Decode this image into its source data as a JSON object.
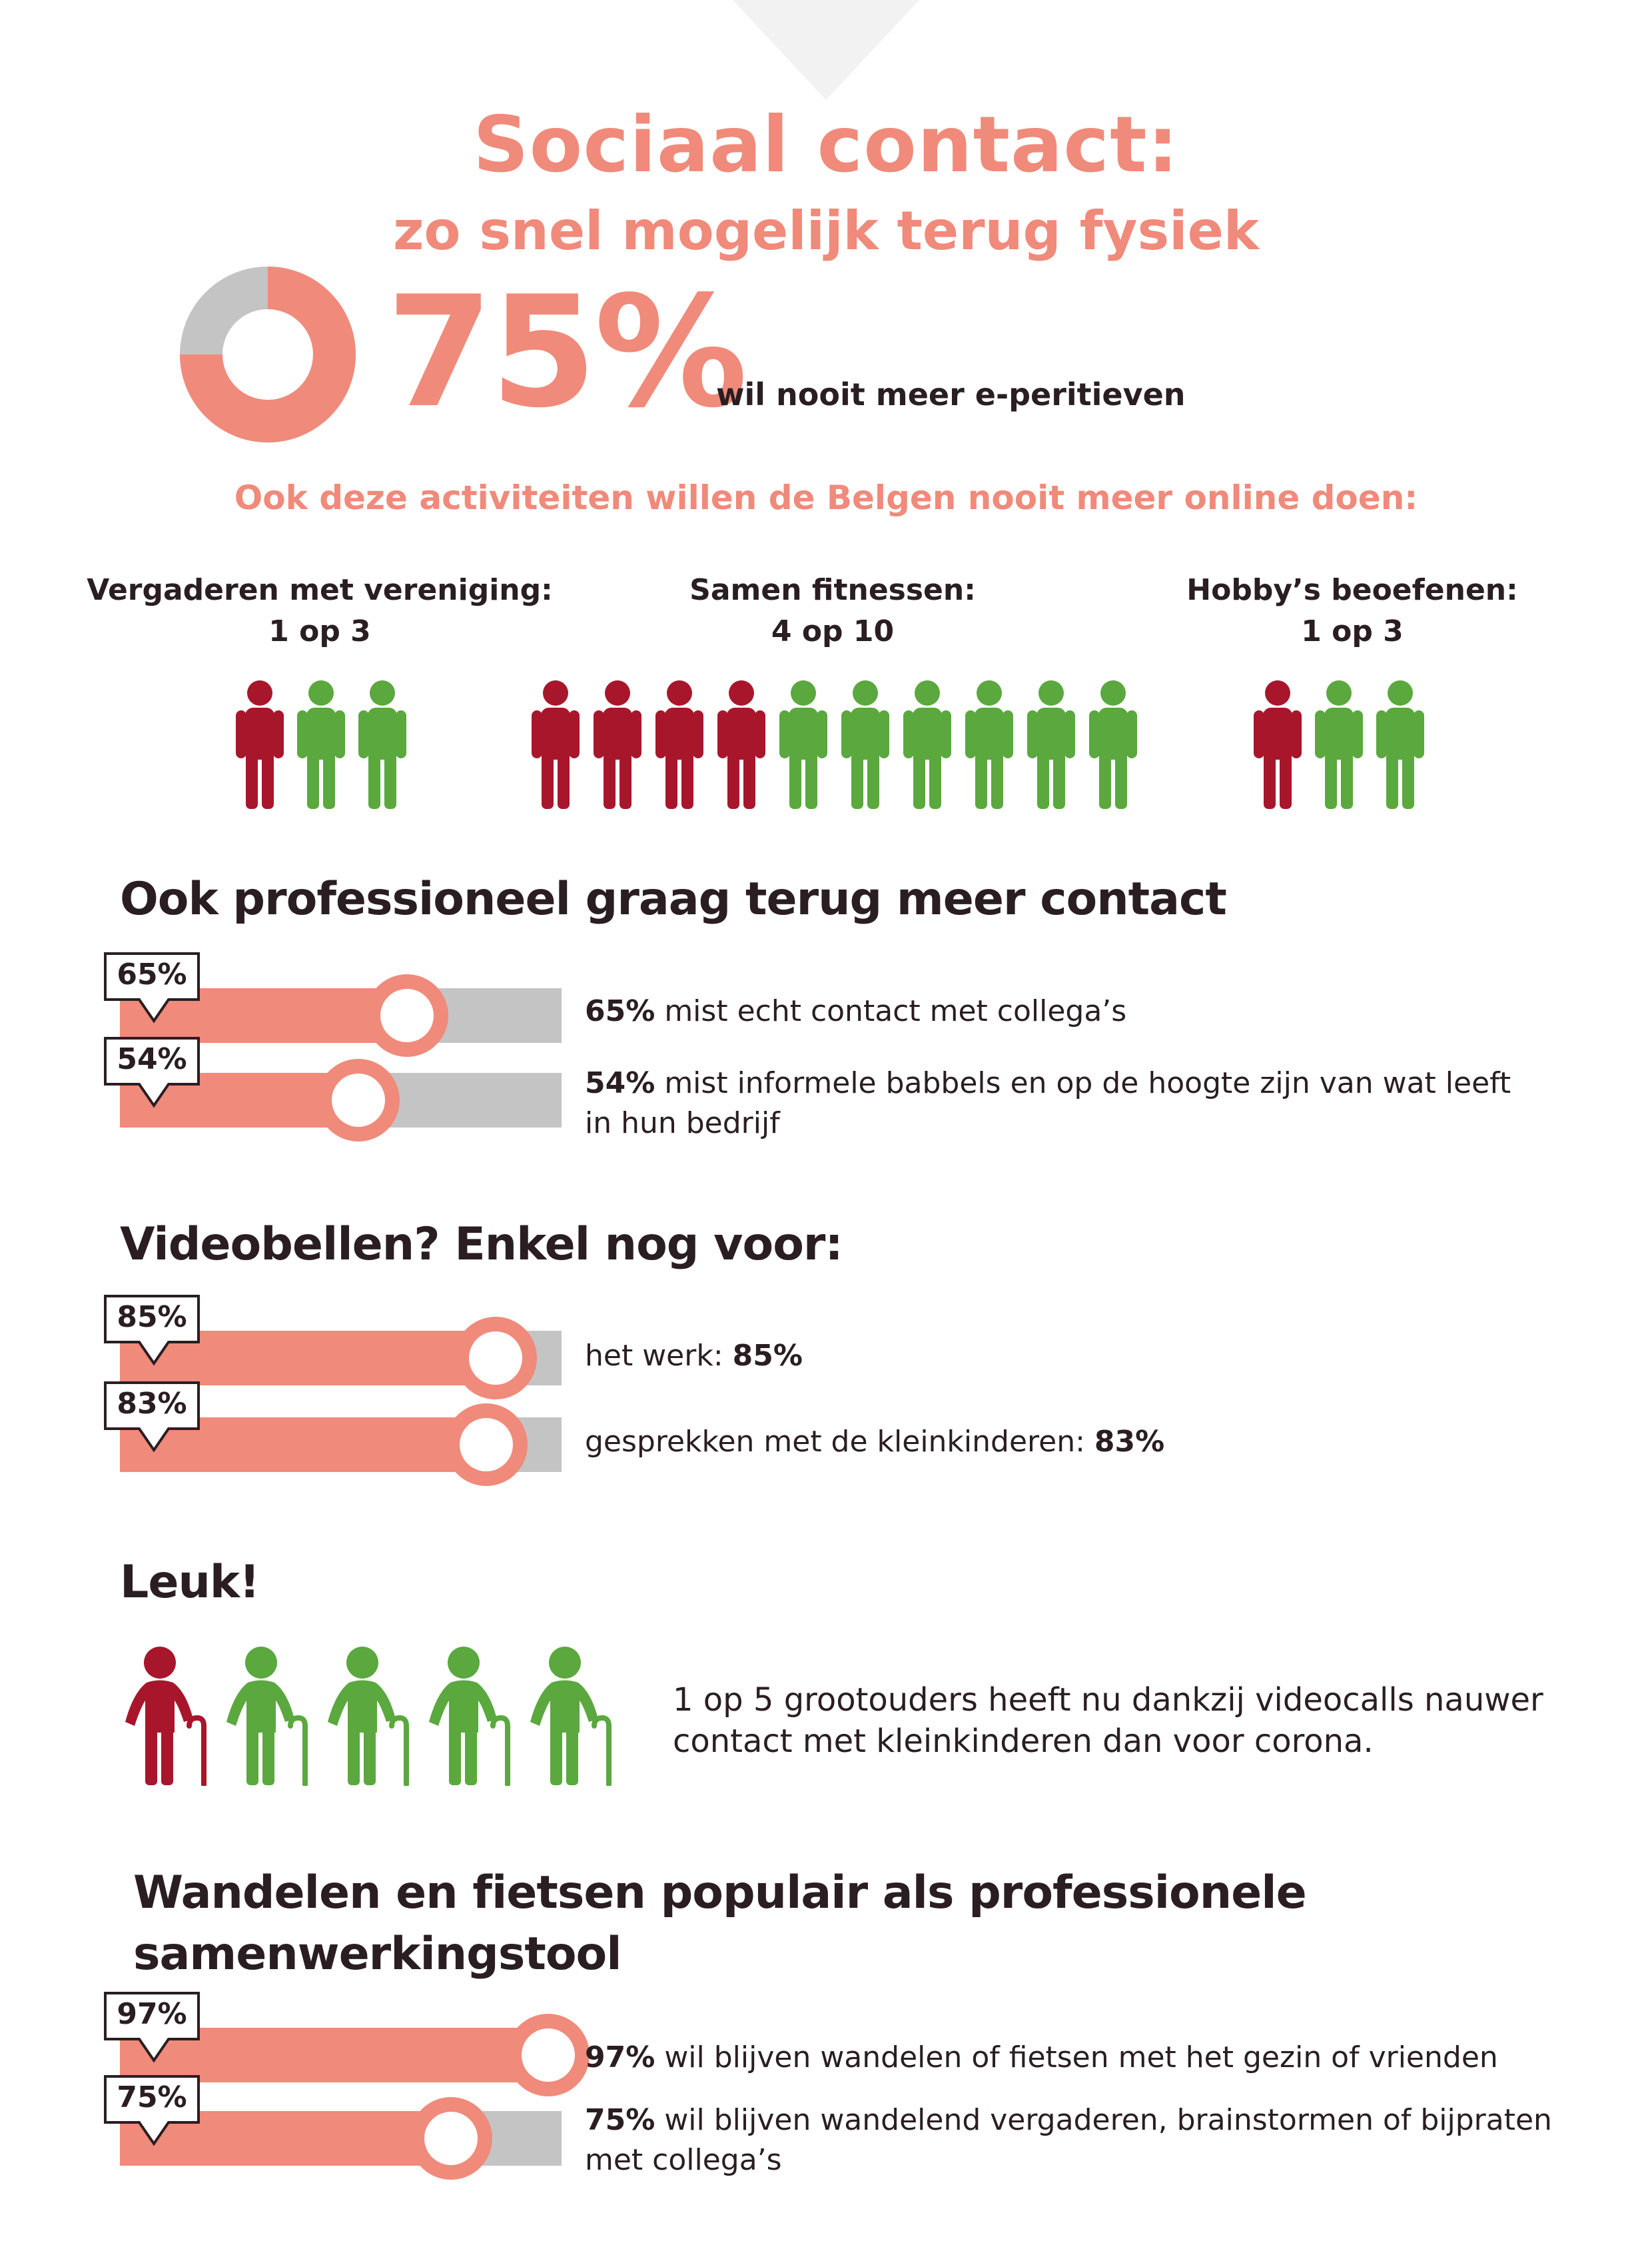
{
  "header": {
    "title": "Sociaal contact:",
    "subtitle": "zo snel mogelijk terug fysiek"
  },
  "headline_stat": {
    "value": "75%",
    "percent": 75,
    "caption": "wil nooit meer e-peritieven"
  },
  "activities": {
    "title": "Ook deze activiteiten willen de Belgen nooit meer online doen:",
    "groups": [
      {
        "name": "Vergaderen met vereniging:",
        "ratio": "1 op 3",
        "highlighted": 1,
        "total": 3
      },
      {
        "name": "Samen fitnessen:",
        "ratio": "4 op 10",
        "highlighted": 4,
        "total": 10
      },
      {
        "name": "Hobby’s beoefenen:",
        "ratio": "1 op 3",
        "highlighted": 1,
        "total": 3
      }
    ]
  },
  "sections": {
    "professional": {
      "title": "Ook professioneel graag terug meer contact",
      "bars": [
        {
          "label": "65%",
          "value": 65,
          "bold": "65%",
          "text": " mist echt contact met collega’s",
          "text2": ""
        },
        {
          "label": "54%",
          "value": 54,
          "bold": "54%",
          "text": " mist informele babbels en op de hoogte zijn van wat leeft",
          "text2": "in hun bedrijf"
        }
      ]
    },
    "video": {
      "title": "Videobellen? Enkel nog voor:",
      "bars": [
        {
          "label": "85%",
          "value": 85,
          "text": "het werk: ",
          "bold": "85%"
        },
        {
          "label": "83%",
          "value": 83,
          "text": "gesprekken met de kleinkinderen: ",
          "bold": "83%"
        }
      ]
    },
    "leuk": {
      "title": "Leuk!",
      "highlighted": 1,
      "total": 5,
      "text_line1": "1 op 5 grootouders heeft nu dankzij videocalls nauwer",
      "text_line2": "contact met kleinkinderen dan voor corona."
    },
    "walking": {
      "title_line1": "Wandelen en fietsen populair als professionele",
      "title_line2": "samenwerkingstool",
      "bars": [
        {
          "label": "97%",
          "value": 97,
          "bold": "97%",
          "text": " wil blijven wandelen of fietsen met het gezin of vrienden",
          "text2": ""
        },
        {
          "label": "75%",
          "value": 75,
          "bold": "75%",
          "text": " wil blijven wandelend vergaderen, brainstormen of bijpraten",
          "text2": "met collega’s"
        }
      ]
    }
  },
  "chart_data": [
    {
      "type": "pie",
      "categories": [
        "wil nooit meer e-peritieven",
        ""
      ],
      "values": [
        75,
        25
      ]
    },
    {
      "type": "bar",
      "title": "Ook professioneel graag terug meer contact",
      "categories": [
        "mist echt contact met collega’s",
        "mist informele babbels en op de hoogte zijn van wat leeft in hun bedrijf"
      ],
      "values": [
        65,
        54
      ],
      "ylim": [
        0,
        100
      ]
    },
    {
      "type": "bar",
      "title": "Videobellen? Enkel nog voor:",
      "categories": [
        "het werk",
        "gesprekken met de kleinkinderen"
      ],
      "values": [
        85,
        83
      ],
      "ylim": [
        0,
        100
      ]
    },
    {
      "type": "bar",
      "title": "Wandelen en fietsen populair als professionele samenwerkingstool",
      "categories": [
        "wil blijven wandelen of fietsen met het gezin of vrienden",
        "wil blijven wandelend vergaderen, brainstormen of bijpraten met collega’s"
      ],
      "values": [
        97,
        75
      ],
      "ylim": [
        0,
        100
      ]
    }
  ],
  "colors": {
    "accent": "#f08a7a",
    "track": "#c4c4c4",
    "highlight_person": "#a8162c",
    "other_person": "#5aa83e",
    "text": "#2a1e22",
    "notch": "#f2f2f2"
  }
}
